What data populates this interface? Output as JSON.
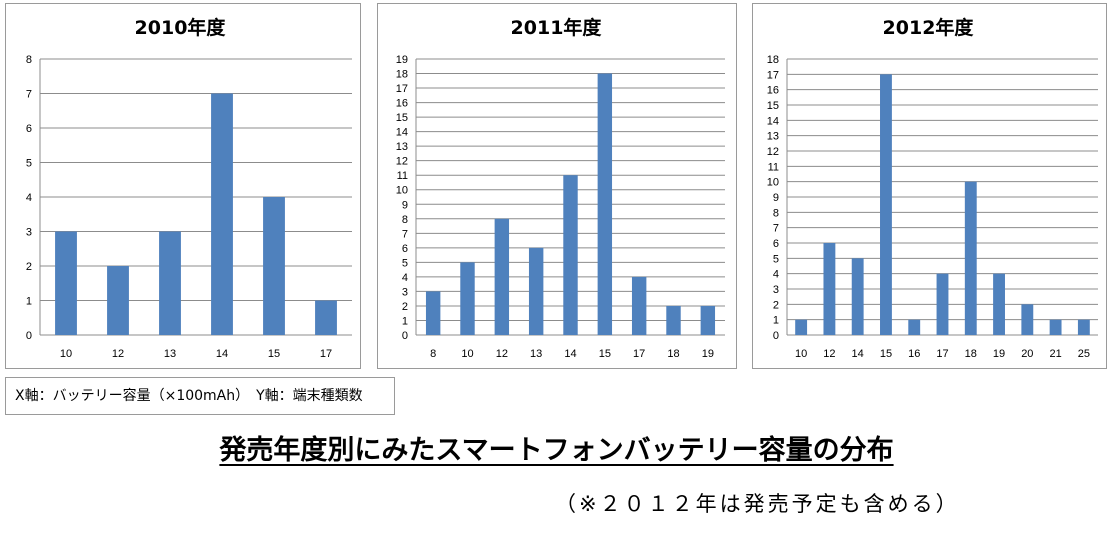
{
  "chart_data": [
    {
      "type": "bar",
      "title": "2010年度",
      "categories": [
        "10",
        "12",
        "13",
        "14",
        "15",
        "17"
      ],
      "values": [
        3,
        2,
        3,
        7,
        4,
        1
      ],
      "ylim": [
        0,
        8
      ],
      "yticks": [
        "0",
        "1",
        "2",
        "3",
        "4",
        "5",
        "6",
        "7",
        "8"
      ],
      "grid": true,
      "color": "#4f81bd"
    },
    {
      "type": "bar",
      "title": "2011年度",
      "categories": [
        "8",
        "10",
        "12",
        "13",
        "14",
        "15",
        "17",
        "18",
        "19"
      ],
      "values": [
        3,
        5,
        8,
        6,
        11,
        18,
        4,
        2,
        2
      ],
      "ylim": [
        0,
        19
      ],
      "yticks": [
        "0",
        "1",
        "2",
        "3",
        "4",
        "5",
        "6",
        "7",
        "8",
        "9",
        "10",
        "11",
        "12",
        "13",
        "14",
        "15",
        "16",
        "17",
        "18",
        "19"
      ],
      "grid": true,
      "color": "#4f81bd"
    },
    {
      "type": "bar",
      "title": "2012年度",
      "categories": [
        "10",
        "12",
        "14",
        "15",
        "16",
        "17",
        "18",
        "19",
        "20",
        "21",
        "25"
      ],
      "values": [
        1,
        6,
        5,
        17,
        1,
        4,
        10,
        4,
        2,
        1,
        1
      ],
      "ylim": [
        0,
        18
      ],
      "yticks": [
        "0",
        "1",
        "2",
        "3",
        "4",
        "5",
        "6",
        "7",
        "8",
        "9",
        "10",
        "11",
        "12",
        "13",
        "14",
        "15",
        "16",
        "17",
        "18"
      ],
      "grid": true,
      "color": "#4f81bd"
    }
  ],
  "axis_note": "X軸：バッテリー容量（×100mAh）　Y軸：端末種類数",
  "main_title": "発売年度別にみたスマートフォンバッテリー容量の分布",
  "footnote": "（※２０１２年は発売予定も含める）"
}
